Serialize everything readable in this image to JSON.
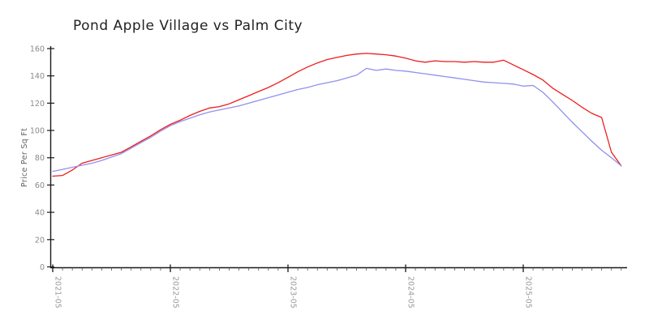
{
  "title": "Pond Apple Village vs Palm City",
  "chart_data": {
    "type": "line",
    "title": "Pond Apple Village vs Palm City",
    "xlabel": "",
    "ylabel": "Price Per Sq Ft",
    "ylim": [
      0,
      160
    ],
    "y_ticks": [
      0,
      20,
      40,
      60,
      80,
      100,
      120,
      140,
      160
    ],
    "x_major_ticks": [
      "2021-05",
      "2022-05",
      "2023-05",
      "2024-05",
      "2025-05"
    ],
    "grid": false,
    "legend_position": "none",
    "x": [
      "2021-05",
      "2021-06",
      "2021-07",
      "2021-08",
      "2021-09",
      "2021-10",
      "2021-11",
      "2021-12",
      "2022-01",
      "2022-02",
      "2022-03",
      "2022-04",
      "2022-05",
      "2022-06",
      "2022-07",
      "2022-08",
      "2022-09",
      "2022-10",
      "2022-11",
      "2022-12",
      "2023-01",
      "2023-02",
      "2023-03",
      "2023-04",
      "2023-05",
      "2023-06",
      "2023-07",
      "2023-08",
      "2023-09",
      "2023-10",
      "2023-11",
      "2023-12",
      "2024-01",
      "2024-02",
      "2024-03",
      "2024-04",
      "2024-05",
      "2024-06",
      "2024-07",
      "2024-08",
      "2024-09",
      "2024-10",
      "2024-11",
      "2024-12",
      "2025-01",
      "2025-02",
      "2025-03",
      "2025-04",
      "2025-05",
      "2025-06",
      "2025-07",
      "2025-08",
      "2025-09",
      "2025-10",
      "2025-11",
      "2025-12",
      "2026-01",
      "2026-02",
      "2026-03"
    ],
    "series": [
      {
        "name": "Pond Apple Village",
        "color": "#ee1c1c",
        "values": [
          66.5,
          67,
          71,
          76,
          78,
          80,
          82,
          84,
          88,
          92,
          96,
          100.5,
          104.5,
          107.5,
          111,
          114,
          116.5,
          117.5,
          119.5,
          122.5,
          125.5,
          128.5,
          131.5,
          135,
          139,
          143,
          146.5,
          149.5,
          152,
          153.5,
          155,
          156,
          156.5,
          156,
          155.5,
          154.5,
          153,
          151,
          150,
          151,
          150.5,
          150.5,
          150,
          150.5,
          150,
          150,
          151.5,
          148,
          144.5,
          141,
          137,
          131,
          126.5,
          122,
          117,
          112.5,
          109.5,
          84,
          74
        ]
      },
      {
        "name": "Palm City",
        "color": "#9090ee",
        "values": [
          70,
          71.5,
          73,
          74.5,
          76,
          78,
          80.5,
          83,
          87,
          91,
          95,
          99.5,
          103.5,
          106.5,
          109,
          111.5,
          113.5,
          115,
          116.5,
          118,
          120,
          122,
          124,
          126,
          128,
          130,
          131.5,
          133.5,
          135,
          136.5,
          138.5,
          140.5,
          145.5,
          144,
          145,
          144,
          143.5,
          142.5,
          141.5,
          140.5,
          139.5,
          138.5,
          137.5,
          136.5,
          135.5,
          135,
          134.5,
          134,
          132.5,
          133,
          128,
          121,
          113.5,
          106,
          99,
          92,
          85.5,
          80,
          74
        ]
      }
    ]
  },
  "colors": {
    "axis": "#1a1a1a",
    "tick_label": "#9a9a9a",
    "title": "#222222",
    "background": "#ffffff"
  }
}
